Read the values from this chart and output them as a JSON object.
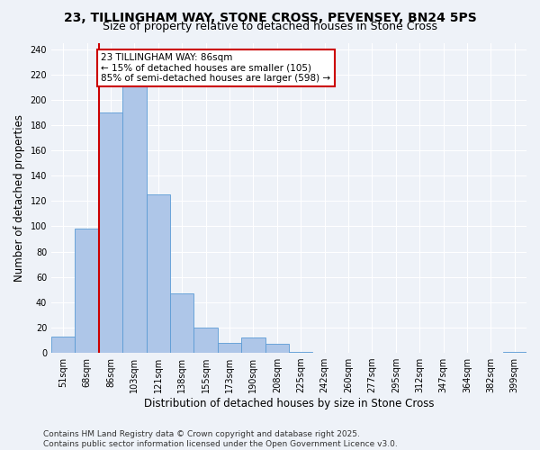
{
  "title": "23, TILLINGHAM WAY, STONE CROSS, PEVENSEY, BN24 5PS",
  "subtitle": "Size of property relative to detached houses in Stone Cross",
  "xlabel": "Distribution of detached houses by size in Stone Cross",
  "ylabel": "Number of detached properties",
  "footnote1": "Contains HM Land Registry data © Crown copyright and database right 2025.",
  "footnote2": "Contains public sector information licensed under the Open Government Licence v3.0.",
  "annotation_line1": "23 TILLINGHAM WAY: 86sqm",
  "annotation_line2": "← 15% of detached houses are smaller (105)",
  "annotation_line3": "85% of semi-detached houses are larger (598) →",
  "bin_labels": [
    "51sqm",
    "68sqm",
    "86sqm",
    "103sqm",
    "121sqm",
    "138sqm",
    "155sqm",
    "173sqm",
    "190sqm",
    "208sqm",
    "225sqm",
    "242sqm",
    "260sqm",
    "277sqm",
    "295sqm",
    "312sqm",
    "347sqm",
    "364sqm",
    "382sqm",
    "399sqm"
  ],
  "bar_values": [
    13,
    98,
    190,
    220,
    125,
    47,
    20,
    8,
    12,
    7,
    1,
    0,
    0,
    0,
    0,
    0,
    0,
    0,
    0,
    1
  ],
  "bar_color": "#aec6e8",
  "bar_edge_color": "#5b9bd5",
  "vline_color": "#cc0000",
  "vline_bar_index": 2,
  "annotation_box_edge_color": "#cc0000",
  "ylim": [
    0,
    245
  ],
  "yticks": [
    0,
    20,
    40,
    60,
    80,
    100,
    120,
    140,
    160,
    180,
    200,
    220,
    240
  ],
  "bg_color": "#eef2f8",
  "grid_color": "#ffffff",
  "title_fontsize": 10,
  "subtitle_fontsize": 9,
  "axis_label_fontsize": 8.5,
  "tick_fontsize": 7,
  "annotation_fontsize": 7.5,
  "footnote_fontsize": 6.5
}
